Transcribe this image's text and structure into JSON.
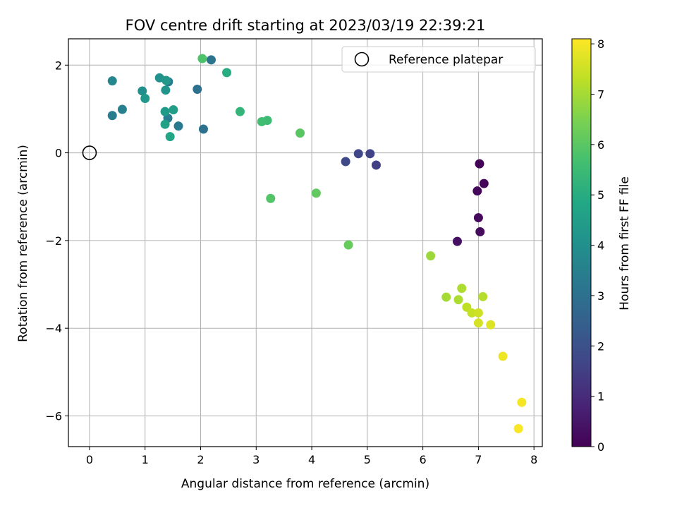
{
  "chart_data": {
    "type": "scatter",
    "title": "FOV centre drift starting at 2023/03/19 22:39:21",
    "xlabel": "Angular distance from reference (arcmin)",
    "ylabel": "Rotation from reference (arcmin)",
    "xlim": [
      -0.38,
      8.15
    ],
    "ylim": [
      -6.7,
      2.6
    ],
    "xticks": [
      0,
      1,
      2,
      3,
      4,
      5,
      6,
      7,
      8
    ],
    "yticks": [
      -6,
      -4,
      -2,
      0,
      2
    ],
    "grid": true,
    "legend": {
      "position": "top-right",
      "entries": [
        "Reference platepar"
      ]
    },
    "reference_point": {
      "x": 0,
      "y": 0,
      "label": "Reference platepar"
    },
    "colorbar": {
      "label": "Hours from first FF file",
      "range": [
        0,
        8.1
      ],
      "ticks": [
        0,
        1,
        2,
        3,
        4,
        5,
        6,
        7,
        8
      ],
      "colormap": "viridis"
    },
    "points": [
      {
        "x": 7.02,
        "y": -0.25,
        "c": 0.05
      },
      {
        "x": 7.1,
        "y": -0.7,
        "c": 0.1
      },
      {
        "x": 6.98,
        "y": -0.87,
        "c": 0.15
      },
      {
        "x": 7.0,
        "y": -1.48,
        "c": 0.2
      },
      {
        "x": 7.03,
        "y": -1.8,
        "c": 0.25
      },
      {
        "x": 6.62,
        "y": -2.02,
        "c": 0.35
      },
      {
        "x": 5.16,
        "y": -0.28,
        "c": 1.5
      },
      {
        "x": 5.05,
        "y": -0.02,
        "c": 1.6
      },
      {
        "x": 4.84,
        "y": -0.02,
        "c": 1.7
      },
      {
        "x": 4.61,
        "y": -0.2,
        "c": 1.8
      },
      {
        "x": 1.94,
        "y": 1.45,
        "c": 3.0
      },
      {
        "x": 2.05,
        "y": 0.54,
        "c": 3.0
      },
      {
        "x": 2.19,
        "y": 2.12,
        "c": 3.1
      },
      {
        "x": 1.6,
        "y": 0.61,
        "c": 3.3
      },
      {
        "x": 1.42,
        "y": 1.62,
        "c": 3.3
      },
      {
        "x": 1.41,
        "y": 0.79,
        "c": 3.4
      },
      {
        "x": 0.41,
        "y": 0.85,
        "c": 3.4
      },
      {
        "x": 0.59,
        "y": 0.99,
        "c": 3.5
      },
      {
        "x": 0.41,
        "y": 1.64,
        "c": 3.7
      },
      {
        "x": 0.95,
        "y": 1.41,
        "c": 4.0
      },
      {
        "x": 1.26,
        "y": 1.71,
        "c": 4.1
      },
      {
        "x": 1.37,
        "y": 1.43,
        "c": 4.2
      },
      {
        "x": 1.38,
        "y": 1.65,
        "c": 4.3
      },
      {
        "x": 1.0,
        "y": 1.24,
        "c": 4.3
      },
      {
        "x": 1.36,
        "y": 0.94,
        "c": 4.4
      },
      {
        "x": 1.51,
        "y": 0.98,
        "c": 4.5
      },
      {
        "x": 1.36,
        "y": 0.65,
        "c": 4.6
      },
      {
        "x": 1.45,
        "y": 0.37,
        "c": 4.8
      },
      {
        "x": 2.47,
        "y": 1.83,
        "c": 5.0
      },
      {
        "x": 2.71,
        "y": 0.94,
        "c": 5.3
      },
      {
        "x": 3.2,
        "y": 0.74,
        "c": 5.5
      },
      {
        "x": 3.1,
        "y": 0.71,
        "c": 5.6
      },
      {
        "x": 2.03,
        "y": 2.15,
        "c": 5.8
      },
      {
        "x": 3.26,
        "y": -1.04,
        "c": 5.9
      },
      {
        "x": 3.79,
        "y": 0.45,
        "c": 6.0
      },
      {
        "x": 4.08,
        "y": -0.92,
        "c": 6.1
      },
      {
        "x": 4.66,
        "y": -2.1,
        "c": 6.2
      },
      {
        "x": 6.14,
        "y": -2.35,
        "c": 6.9
      },
      {
        "x": 6.42,
        "y": -3.29,
        "c": 7.0
      },
      {
        "x": 6.64,
        "y": -3.35,
        "c": 7.1
      },
      {
        "x": 6.7,
        "y": -3.09,
        "c": 7.1
      },
      {
        "x": 7.08,
        "y": -3.28,
        "c": 7.2
      },
      {
        "x": 6.79,
        "y": -3.52,
        "c": 7.3
      },
      {
        "x": 6.88,
        "y": -3.65,
        "c": 7.4
      },
      {
        "x": 7.0,
        "y": -3.65,
        "c": 7.5
      },
      {
        "x": 7.0,
        "y": -3.88,
        "c": 7.6
      },
      {
        "x": 7.22,
        "y": -3.92,
        "c": 7.7
      },
      {
        "x": 7.44,
        "y": -4.64,
        "c": 7.9
      },
      {
        "x": 7.78,
        "y": -5.69,
        "c": 8.0
      },
      {
        "x": 7.72,
        "y": -6.29,
        "c": 8.05
      }
    ]
  }
}
